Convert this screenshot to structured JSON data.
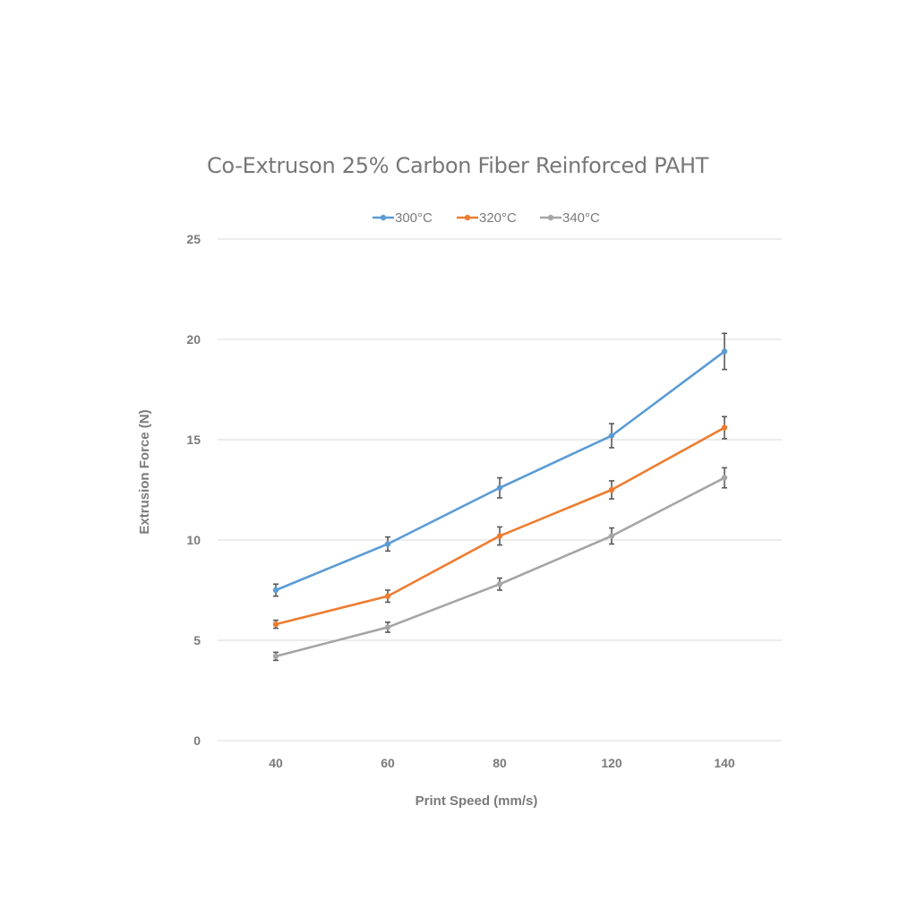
{
  "chart_data": {
    "type": "line",
    "title": "Co-Extruson 25% Carbon Fiber Reinforced PAHT",
    "xlabel": "Print Speed (mm/s)",
    "ylabel": "Extrusion Force (N)",
    "categories": [
      "40",
      "60",
      "80",
      "120",
      "140"
    ],
    "ylim": [
      0,
      25
    ],
    "yticks": [
      0,
      5,
      10,
      15,
      20,
      25
    ],
    "grid": true,
    "legend_position": "top",
    "series": [
      {
        "name": "300°C",
        "color": "#5b9bd5",
        "values": [
          7.5,
          9.8,
          12.6,
          15.2,
          19.4
        ],
        "errors": [
          0.3,
          0.35,
          0.5,
          0.6,
          0.9
        ]
      },
      {
        "name": "320°C",
        "color": "#ed7d31",
        "values": [
          5.8,
          7.2,
          10.2,
          12.5,
          15.6
        ],
        "errors": [
          0.2,
          0.3,
          0.45,
          0.45,
          0.55
        ]
      },
      {
        "name": "340°C",
        "color": "#a5a5a5",
        "values": [
          4.2,
          5.65,
          7.8,
          10.2,
          13.1
        ],
        "errors": [
          0.2,
          0.25,
          0.3,
          0.4,
          0.5
        ]
      }
    ]
  }
}
